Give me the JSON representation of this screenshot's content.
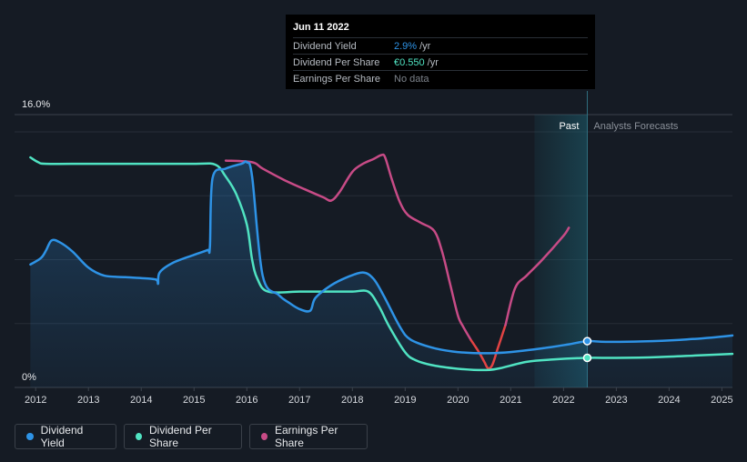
{
  "chart_data": {
    "type": "line",
    "y_axis": {
      "top_label": "16.0%",
      "bottom_label": "0%",
      "ylim": [
        0,
        16
      ]
    },
    "x_axis": {
      "labels": [
        "2012",
        "2013",
        "2014",
        "2015",
        "2016",
        "2017",
        "2018",
        "2019",
        "2020",
        "2021",
        "2022",
        "2023",
        "2024",
        "2025"
      ],
      "xlim": [
        2011.6,
        2025.2
      ]
    },
    "regions": {
      "past_label": "Past",
      "forecast_label": "Analysts Forecasts",
      "past_start": 2021.45,
      "forecast_start": 2022.45
    },
    "series": [
      {
        "name": "Dividend Yield",
        "color": "#2e93e6",
        "points": [
          [
            2011.9,
            7.7
          ],
          [
            2012.1,
            8.1
          ],
          [
            2012.2,
            8.6
          ],
          [
            2012.3,
            9.2
          ],
          [
            2012.45,
            9.1
          ],
          [
            2012.7,
            8.5
          ],
          [
            2013.0,
            7.5
          ],
          [
            2013.3,
            7.0
          ],
          [
            2013.7,
            6.9
          ],
          [
            2014.2,
            6.8
          ],
          [
            2014.3,
            6.7
          ],
          [
            2014.32,
            6.5
          ],
          [
            2014.35,
            7.2
          ],
          [
            2014.6,
            7.8
          ],
          [
            2015.0,
            8.3
          ],
          [
            2015.25,
            8.6
          ],
          [
            2015.3,
            8.8
          ],
          [
            2015.35,
            13.1
          ],
          [
            2015.6,
            13.7
          ],
          [
            2015.9,
            14.0
          ],
          [
            2016.0,
            14.1
          ],
          [
            2016.1,
            13.2
          ],
          [
            2016.3,
            7.0
          ],
          [
            2016.6,
            5.8
          ],
          [
            2016.8,
            5.3
          ],
          [
            2017.0,
            4.9
          ],
          [
            2017.2,
            4.8
          ],
          [
            2017.3,
            5.6
          ],
          [
            2017.6,
            6.4
          ],
          [
            2017.9,
            6.9
          ],
          [
            2018.2,
            7.2
          ],
          [
            2018.4,
            6.8
          ],
          [
            2018.6,
            5.7
          ],
          [
            2018.9,
            3.8
          ],
          [
            2019.1,
            3.0
          ],
          [
            2019.5,
            2.5
          ],
          [
            2019.9,
            2.25
          ],
          [
            2020.3,
            2.15
          ],
          [
            2020.7,
            2.15
          ],
          [
            2021.1,
            2.25
          ],
          [
            2021.6,
            2.45
          ],
          [
            2022.1,
            2.7
          ],
          [
            2022.45,
            2.9
          ],
          [
            2022.8,
            2.85
          ],
          [
            2023.5,
            2.88
          ],
          [
            2024.2,
            2.98
          ],
          [
            2024.8,
            3.12
          ],
          [
            2025.2,
            3.25
          ]
        ]
      },
      {
        "name": "Dividend Per Share",
        "color": "#50e3c2",
        "points": [
          [
            2011.9,
            14.4
          ],
          [
            2012.05,
            14.1
          ],
          [
            2012.2,
            14.0
          ],
          [
            2013.0,
            14.0
          ],
          [
            2014.0,
            14.0
          ],
          [
            2015.0,
            14.0
          ],
          [
            2015.4,
            13.95
          ],
          [
            2015.6,
            13.2
          ],
          [
            2015.8,
            12.1
          ],
          [
            2016.0,
            10.2
          ],
          [
            2016.1,
            8.0
          ],
          [
            2016.2,
            6.8
          ],
          [
            2016.4,
            6.0
          ],
          [
            2017.0,
            6.0
          ],
          [
            2017.5,
            6.0
          ],
          [
            2018.0,
            6.0
          ],
          [
            2018.3,
            6.0
          ],
          [
            2018.5,
            5.1
          ],
          [
            2018.7,
            3.8
          ],
          [
            2019.0,
            2.2
          ],
          [
            2019.2,
            1.7
          ],
          [
            2019.5,
            1.4
          ],
          [
            2019.9,
            1.2
          ],
          [
            2020.3,
            1.1
          ],
          [
            2020.6,
            1.1
          ],
          [
            2020.8,
            1.2
          ],
          [
            2021.3,
            1.6
          ],
          [
            2021.8,
            1.75
          ],
          [
            2022.45,
            1.85
          ],
          [
            2023.0,
            1.85
          ],
          [
            2023.8,
            1.9
          ],
          [
            2024.5,
            2.0
          ],
          [
            2025.2,
            2.1
          ]
        ]
      },
      {
        "name": "Earnings Per Share",
        "color": "#c74b86",
        "negative_color": "#e24343",
        "points": [
          [
            2015.6,
            14.2
          ],
          [
            2016.1,
            14.1
          ],
          [
            2016.3,
            13.7
          ],
          [
            2016.7,
            13.0
          ],
          [
            2017.1,
            12.4
          ],
          [
            2017.45,
            11.9
          ],
          [
            2017.6,
            11.7
          ],
          [
            2017.75,
            12.2
          ],
          [
            2018.0,
            13.5
          ],
          [
            2018.2,
            14.0
          ],
          [
            2018.4,
            14.3
          ],
          [
            2018.55,
            14.55
          ],
          [
            2018.62,
            14.4
          ],
          [
            2018.75,
            13.0
          ],
          [
            2018.9,
            11.6
          ],
          [
            2019.05,
            10.8
          ],
          [
            2019.3,
            10.3
          ],
          [
            2019.55,
            9.8
          ],
          [
            2019.7,
            8.5
          ],
          [
            2019.85,
            6.5
          ],
          [
            2020.0,
            4.5
          ],
          [
            2020.1,
            3.8
          ],
          [
            2020.25,
            2.95
          ],
          [
            2020.4,
            2.2
          ],
          [
            2020.5,
            1.6
          ],
          [
            2020.57,
            1.2
          ],
          [
            2020.65,
            1.4
          ],
          [
            2020.75,
            2.4
          ],
          [
            2020.9,
            3.9
          ],
          [
            2021.08,
            6.2
          ],
          [
            2021.3,
            7.0
          ],
          [
            2021.6,
            8.0
          ],
          [
            2022.0,
            9.5
          ],
          [
            2022.1,
            10.0
          ]
        ]
      }
    ],
    "markers": [
      {
        "series": "Dividend Yield",
        "x": 2022.45,
        "y": 2.9
      },
      {
        "series": "Dividend Per Share",
        "x": 2022.45,
        "y": 1.85
      }
    ]
  },
  "tooltip": {
    "date": "Jun 11 2022",
    "rows": [
      {
        "label": "Dividend Yield",
        "value": "2.9%",
        "unit": "/yr",
        "color": "#2e93e6"
      },
      {
        "label": "Dividend Per Share",
        "value": "€0.550",
        "unit": "/yr",
        "color": "#50e3c2"
      },
      {
        "label": "Earnings Per Share",
        "value": "No data",
        "unit": "",
        "color": "#7d838b"
      }
    ]
  },
  "legend": [
    {
      "label": "Dividend Yield",
      "color": "#2e93e6"
    },
    {
      "label": "Dividend Per Share",
      "color": "#50e3c2"
    },
    {
      "label": "Earnings Per Share",
      "color": "#c74b86"
    }
  ]
}
